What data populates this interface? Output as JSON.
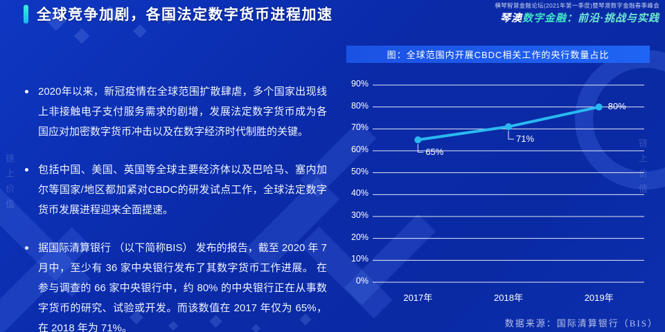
{
  "header": {
    "title": "全球竞争加剧，各国法定数字货币进程加速",
    "event_line1": "横琴智慧金融论坛(2021年第一季度)暨琴澳数字金融春季峰会",
    "event_line2_part1": "琴澳",
    "event_line2_part2": "数字金融",
    "event_line2_part3": "：前沿·挑战与实践",
    "accent_color": "#2ee0e0"
  },
  "bullets": [
    "2020年以来，新冠疫情在全球范围扩散肆虐，多个国家出现线上非接触电子支付服务需求的剧增，发展法定数字货币成为各国应对加密数字货币冲击以及在数字经济时代制胜的关键。",
    "包括中国、美国、英国等全球主要经济体以及巴哈马、塞内加尔等国家/地区都加紧对CBDC的研发试点工作，全球法定数字货币发展进程迎来全面提速。",
    "据国际清算银行 （以下简称BIS） 发布的报告，截至 2020 年 7 月中，至少有 36 家中央银行发布了其数字货币工作进展。  在参与调查的 66 家中央银行中，约 80% 的中央银行正在从事数字货币的研究、试验或开发。而该数值在 2017 年仅为 65%，在 2018 年为 71%。"
  ],
  "chart_data": {
    "type": "line",
    "title": "图：全球范围内开展CBDC相关工作的央行数量占比",
    "categories": [
      "2017年",
      "2018年",
      "2019年"
    ],
    "values": [
      65,
      71,
      80
    ],
    "point_labels": [
      "65%",
      "71%",
      "80%"
    ],
    "label_positions": [
      "below",
      "below",
      "right"
    ],
    "yticks": [
      90,
      80,
      70,
      60,
      50,
      40,
      30,
      20,
      10,
      0
    ],
    "ytick_suffix": "%",
    "ylim": [
      0,
      90
    ],
    "xlabel": "",
    "ylabel": "",
    "grid": true,
    "legend": false,
    "line_color": "#29b9f0",
    "source": "数据来源：国际清算银行（BIS）"
  },
  "decor": {
    "watermark_text": "链上价值"
  }
}
